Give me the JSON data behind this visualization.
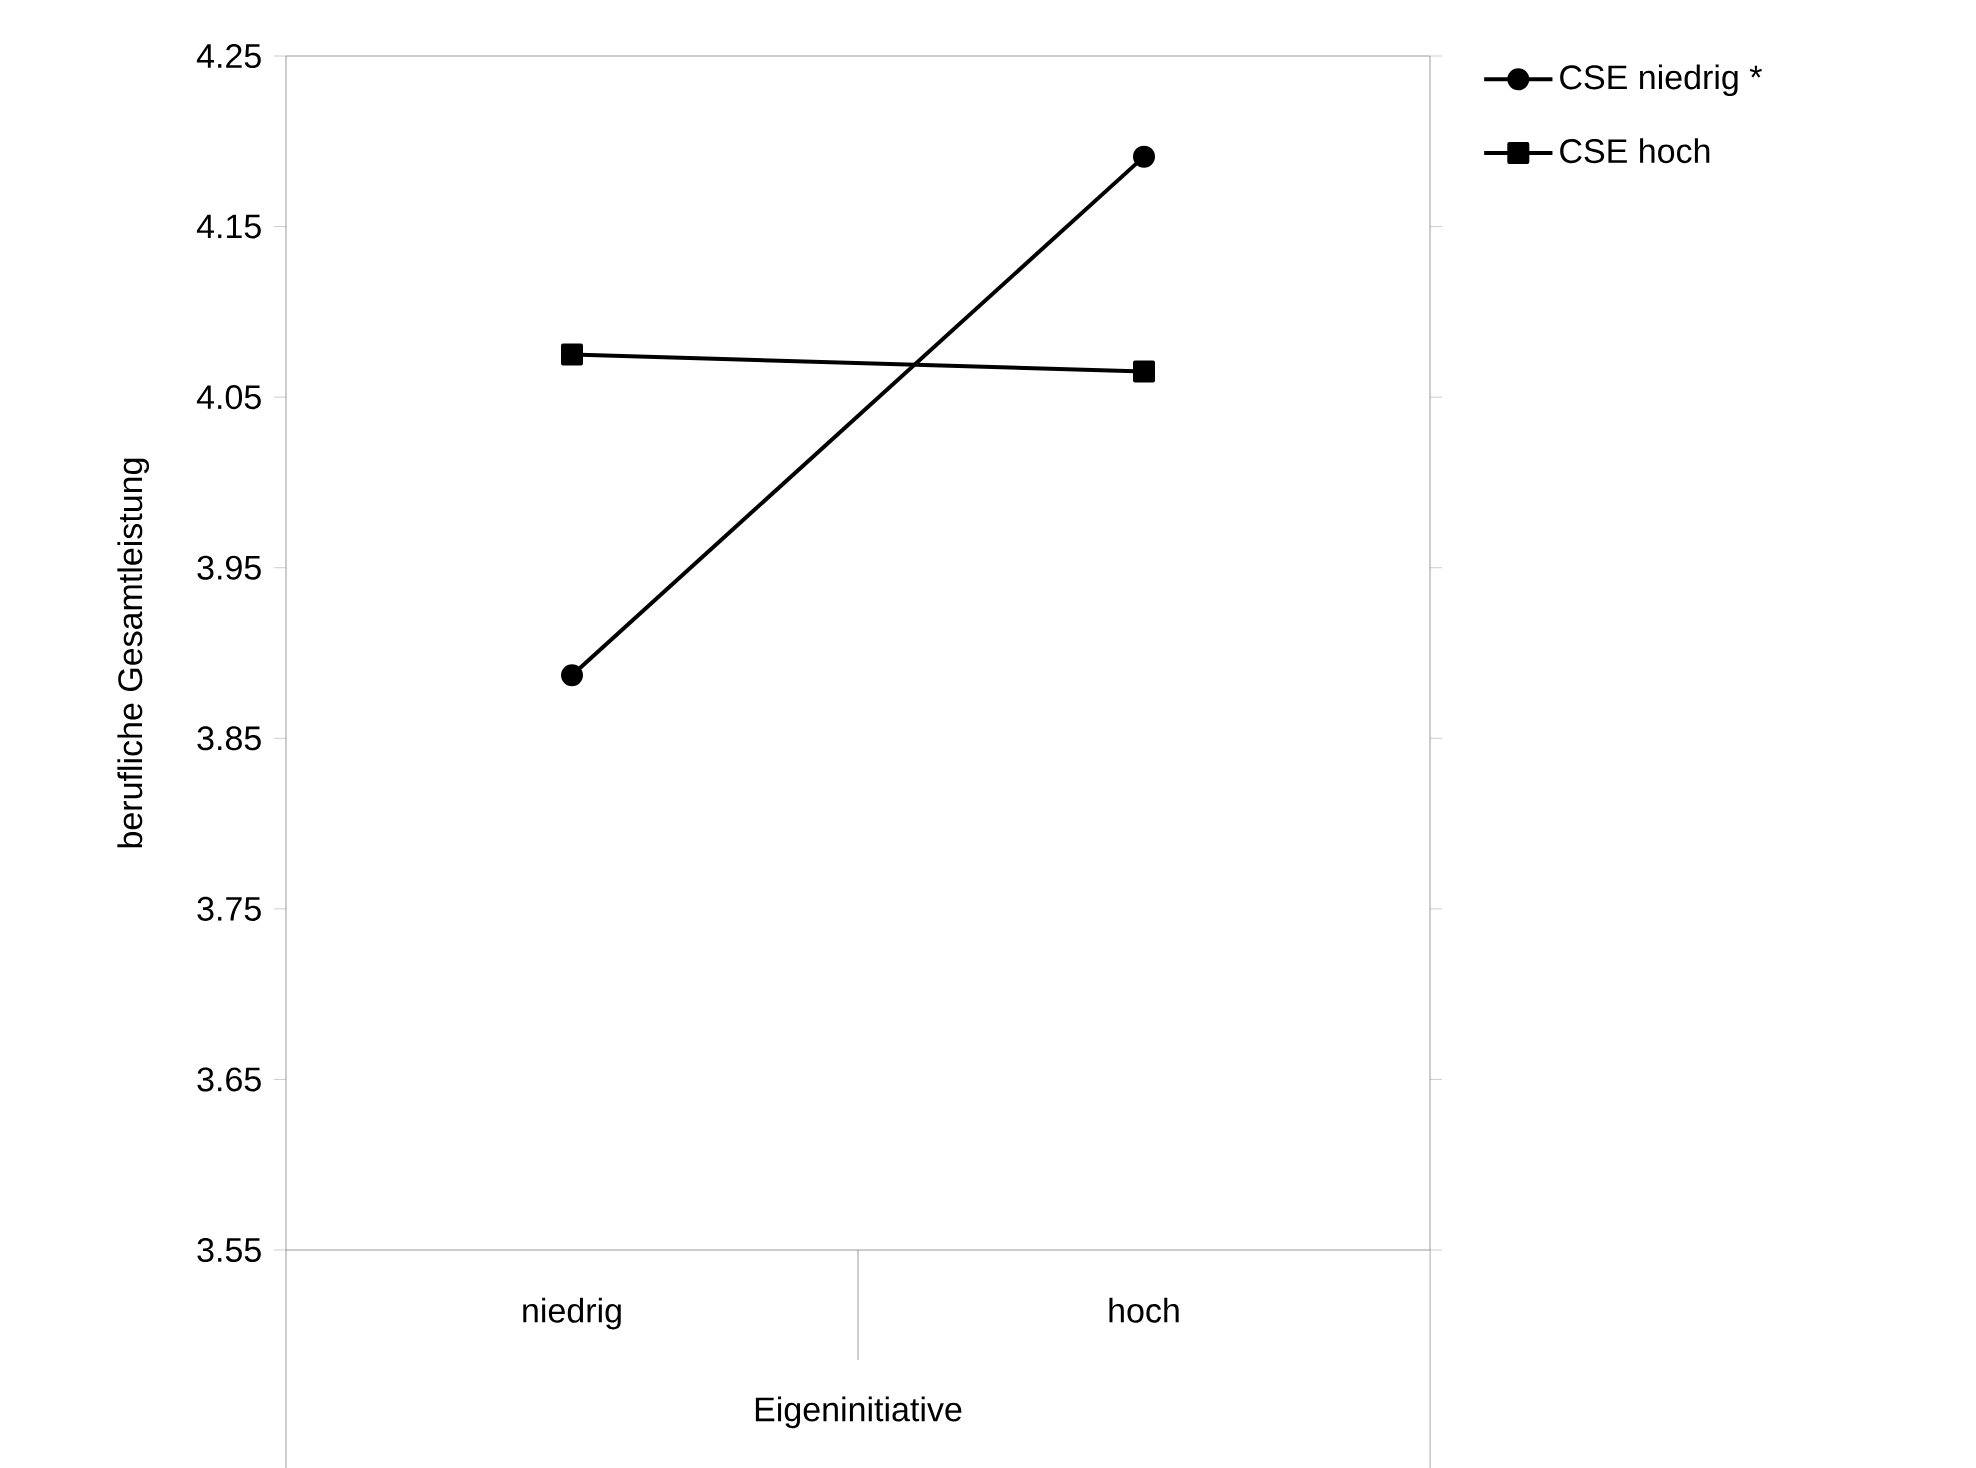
{
  "chart_data": {
    "type": "line",
    "xlabel": "Eigeninitiative",
    "ylabel": "berufliche Gesamtleistung",
    "categories": [
      "niedrig",
      "hoch"
    ],
    "series": [
      {
        "name": "CSE niedrig *",
        "color": "#000000",
        "marker": "circle",
        "values": [
          3.887,
          4.191
        ]
      },
      {
        "name": "CSE hoch",
        "color": "#000000",
        "marker": "square",
        "values": [
          4.075,
          4.065
        ]
      }
    ],
    "ylim": [
      3.55,
      4.25
    ],
    "yticks": [
      {
        "value": 3.55,
        "label": "3.55"
      },
      {
        "value": 3.65,
        "label": "3.65"
      },
      {
        "value": 3.75,
        "label": "3.75"
      },
      {
        "value": 3.85,
        "label": "3.85"
      },
      {
        "value": 3.95,
        "label": "3.95"
      },
      {
        "value": 4.05,
        "label": "4.05"
      },
      {
        "value": 4.15,
        "label": "4.15"
      },
      {
        "value": 4.25,
        "label": "4.25"
      }
    ],
    "grid": false,
    "legend": "top right",
    "line_style": "solid"
  }
}
